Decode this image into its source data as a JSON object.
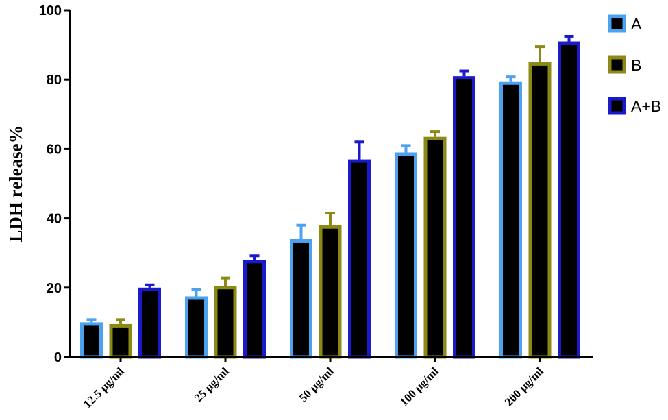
{
  "chart_data": {
    "type": "bar",
    "title": "",
    "xlabel": "",
    "ylabel": "LDH release%",
    "ylim": [
      0,
      100
    ],
    "yticks": [
      0,
      20,
      40,
      60,
      80,
      100
    ],
    "categories": [
      "12.5 μg/ml",
      "25 μg/ml",
      "50 μg/ml",
      "100 μg/ml",
      "200 μg/ml"
    ],
    "series": [
      {
        "name": "A",
        "values": [
          10,
          17.5,
          34,
          59,
          79.5
        ],
        "errors": [
          0.8,
          2,
          4,
          2,
          1.3
        ],
        "color": "#4ba3f0"
      },
      {
        "name": "B",
        "values": [
          9.5,
          20.5,
          38,
          63.5,
          85
        ],
        "errors": [
          1.3,
          2.3,
          3.5,
          1.5,
          4.5
        ],
        "color": "#8c8a14"
      },
      {
        "name": "A+B",
        "values": [
          20,
          28,
          57,
          81,
          91
        ],
        "errors": [
          0.8,
          1.2,
          5,
          1.5,
          1.5
        ],
        "color": "#1a1acc"
      }
    ],
    "bar_fill": "#000000",
    "legend_position": "top-right",
    "grid": false
  }
}
